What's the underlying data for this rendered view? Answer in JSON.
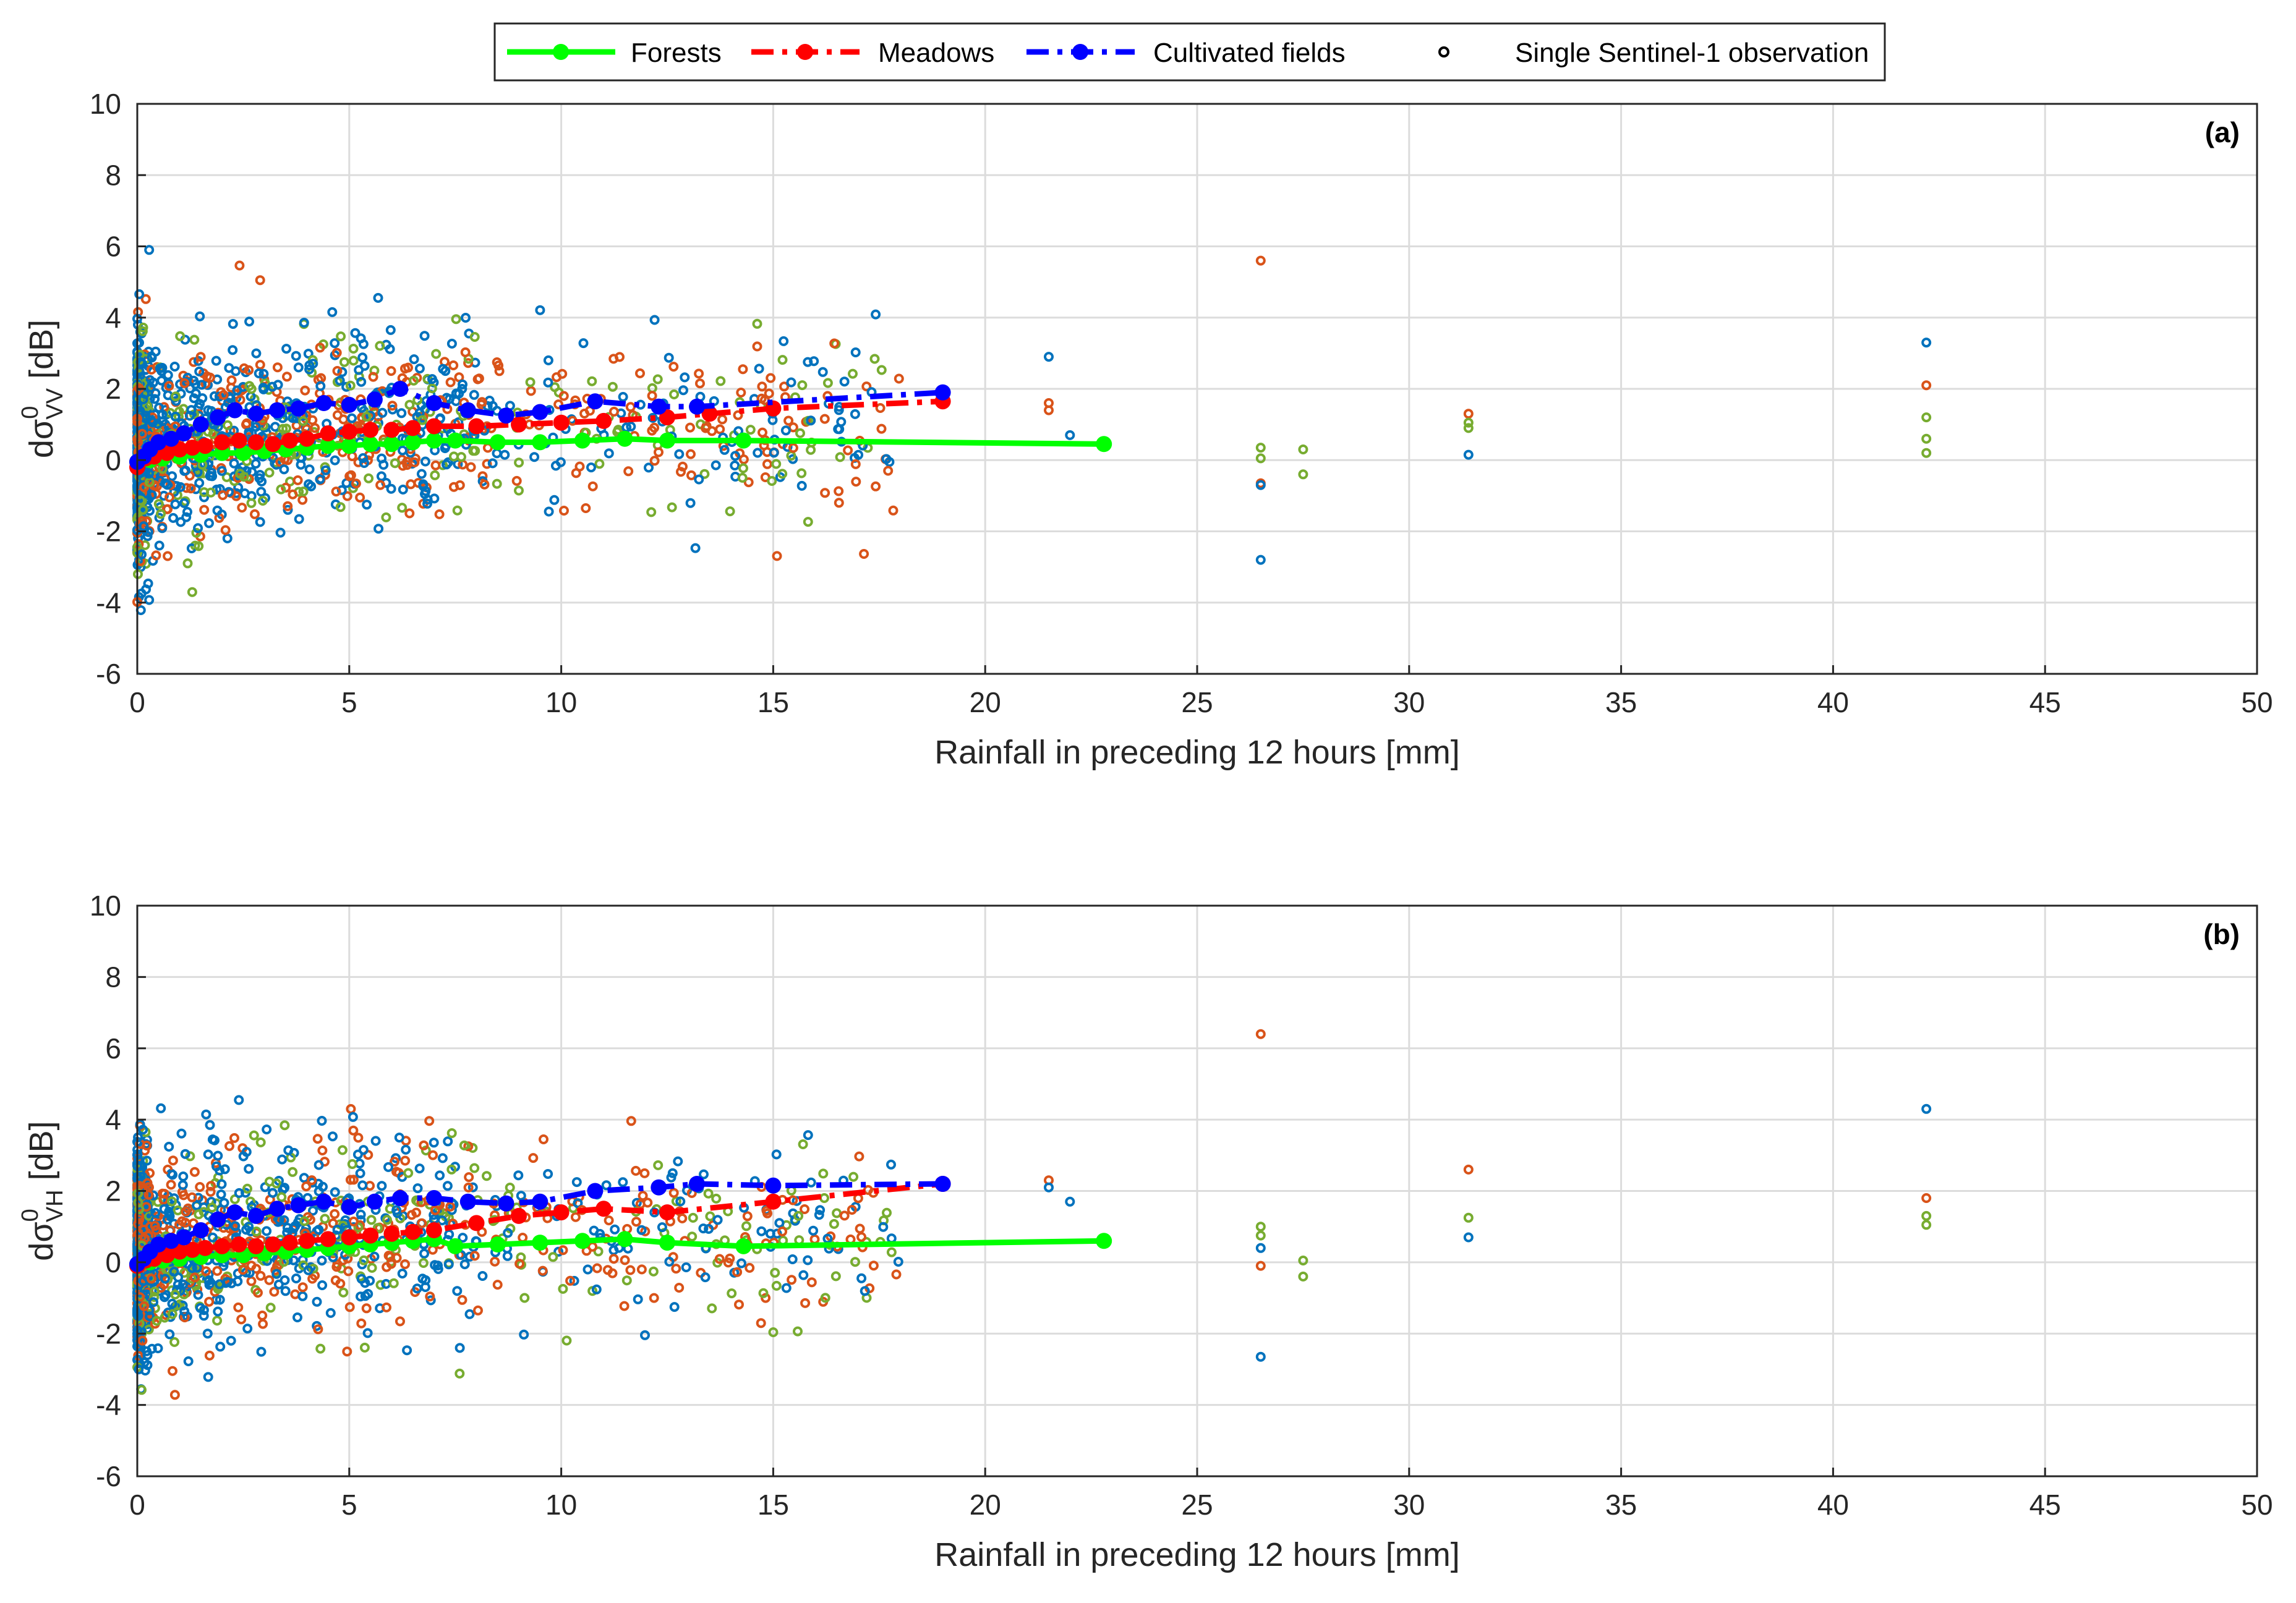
{
  "legend": {
    "forests": "Forests",
    "meadows": "Meadows",
    "cultivated": "Cultivated fields",
    "single": "Single Sentinel-1 observation"
  },
  "colors": {
    "forest_line": "#00ff00",
    "meadow_line": "#ff0000",
    "cultivated_line": "#0000ff",
    "forest_points": "#77ac30",
    "meadow_points": "#d95319",
    "cultivated_points": "#0072bd"
  },
  "chart_data": [
    {
      "type": "scatter",
      "panel_label": "(a)",
      "xlabel": "Rainfall in preceding 12 hours [mm]",
      "ylabel_prefix": "dσ",
      "ylabel_sup": "0",
      "ylabel_sub": "VV",
      "ylabel_suffix": " [dB]",
      "xlim": [
        0,
        50
      ],
      "ylim": [
        -6,
        10
      ],
      "xticks": [
        "0",
        "5",
        "10",
        "15",
        "20",
        "25",
        "30",
        "35",
        "40",
        "45",
        "50"
      ],
      "yticks": [
        "-6",
        "-4",
        "-2",
        "0",
        "2",
        "4",
        "6",
        "8",
        "10"
      ],
      "series": [
        {
          "name": "Forests",
          "x": [
            0,
            0.3,
            0.6,
            1,
            1.5,
            2,
            2.5,
            3,
            3.5,
            4,
            4.5,
            5,
            5.5,
            6,
            6.5,
            7,
            7.5,
            8.5,
            9.5,
            10.5,
            11.5,
            12.5,
            14.3,
            22.8
          ],
          "y": [
            -0.05,
            0.0,
            0.05,
            0.1,
            0.15,
            0.2,
            0.2,
            0.25,
            0.3,
            0.35,
            0.4,
            0.4,
            0.45,
            0.45,
            0.5,
            0.55,
            0.55,
            0.5,
            0.5,
            0.55,
            0.6,
            0.55,
            0.55,
            0.45
          ]
        },
        {
          "name": "Meadows",
          "x": [
            0,
            0.2,
            0.4,
            0.7,
            1,
            1.3,
            1.6,
            2,
            2.4,
            2.8,
            3.2,
            3.6,
            4,
            4.5,
            5,
            5.5,
            6,
            6.5,
            7,
            8,
            9,
            10,
            11,
            12.5,
            13.5,
            15,
            19
          ],
          "y": [
            -0.2,
            0.05,
            0.1,
            0.2,
            0.3,
            0.35,
            0.4,
            0.5,
            0.55,
            0.5,
            0.45,
            0.55,
            0.6,
            0.75,
            0.8,
            0.85,
            0.85,
            0.9,
            0.95,
            0.95,
            1.0,
            1.05,
            1.1,
            1.2,
            1.3,
            1.45,
            1.65
          ]
        },
        {
          "name": "Cultivated fields",
          "x": [
            0,
            0.15,
            0.3,
            0.5,
            0.8,
            1.1,
            1.5,
            1.9,
            2.3,
            2.8,
            3.3,
            3.8,
            4.4,
            5,
            5.6,
            6.2,
            7,
            7.8,
            8.7,
            9.5,
            10.8,
            12.3,
            13.2,
            19
          ],
          "y": [
            -0.05,
            0.1,
            0.3,
            0.5,
            0.6,
            0.75,
            1.0,
            1.2,
            1.4,
            1.3,
            1.4,
            1.45,
            1.6,
            1.55,
            1.7,
            2.0,
            1.6,
            1.4,
            1.25,
            1.35,
            1.65,
            1.5,
            1.5,
            1.9
          ]
        }
      ]
    },
    {
      "type": "scatter",
      "panel_label": "(b)",
      "xlabel": "Rainfall in preceding 12 hours [mm]",
      "ylabel_prefix": "dσ",
      "ylabel_sup": "0",
      "ylabel_sub": "VH",
      "ylabel_suffix": " [dB]",
      "xlim": [
        0,
        50
      ],
      "ylim": [
        -6,
        10
      ],
      "xticks": [
        "0",
        "5",
        "10",
        "15",
        "20",
        "25",
        "30",
        "35",
        "40",
        "45",
        "50"
      ],
      "yticks": [
        "-6",
        "-4",
        "-2",
        "0",
        "2",
        "4",
        "6",
        "8",
        "10"
      ],
      "series": [
        {
          "name": "Forests",
          "x": [
            0,
            0.3,
            0.6,
            1,
            1.5,
            2,
            2.5,
            3,
            3.5,
            4,
            4.5,
            5,
            5.5,
            6,
            6.5,
            7,
            7.5,
            8.5,
            9.5,
            10.5,
            11.5,
            12.5,
            14.3,
            22.8
          ],
          "y": [
            -0.05,
            0.0,
            0.05,
            0.1,
            0.15,
            0.2,
            0.2,
            0.25,
            0.3,
            0.35,
            0.4,
            0.45,
            0.5,
            0.55,
            0.6,
            0.65,
            0.45,
            0.5,
            0.55,
            0.6,
            0.65,
            0.55,
            0.45,
            0.6
          ]
        },
        {
          "name": "Meadows",
          "x": [
            0,
            0.2,
            0.4,
            0.7,
            1,
            1.3,
            1.6,
            2,
            2.4,
            2.8,
            3.2,
            3.6,
            4,
            4.5,
            5,
            5.5,
            6,
            6.5,
            7,
            8,
            9,
            10,
            11,
            12.5,
            15,
            19
          ],
          "y": [
            -0.1,
            0.05,
            0.1,
            0.2,
            0.3,
            0.35,
            0.4,
            0.45,
            0.5,
            0.45,
            0.5,
            0.55,
            0.6,
            0.65,
            0.7,
            0.75,
            0.8,
            0.85,
            0.9,
            1.1,
            1.3,
            1.4,
            1.5,
            1.4,
            1.7,
            2.2
          ]
        },
        {
          "name": "Cultivated fields",
          "x": [
            0,
            0.15,
            0.3,
            0.5,
            0.8,
            1.1,
            1.5,
            1.9,
            2.3,
            2.8,
            3.3,
            3.8,
            4.4,
            5,
            5.6,
            6.2,
            7,
            7.8,
            8.7,
            9.5,
            10.8,
            12.3,
            13.2,
            15,
            19
          ],
          "y": [
            -0.05,
            0.1,
            0.3,
            0.5,
            0.6,
            0.7,
            0.9,
            1.2,
            1.4,
            1.3,
            1.5,
            1.6,
            1.7,
            1.55,
            1.7,
            1.8,
            1.8,
            1.7,
            1.65,
            1.7,
            2.0,
            2.1,
            2.2,
            2.15,
            2.2
          ]
        }
      ]
    }
  ]
}
